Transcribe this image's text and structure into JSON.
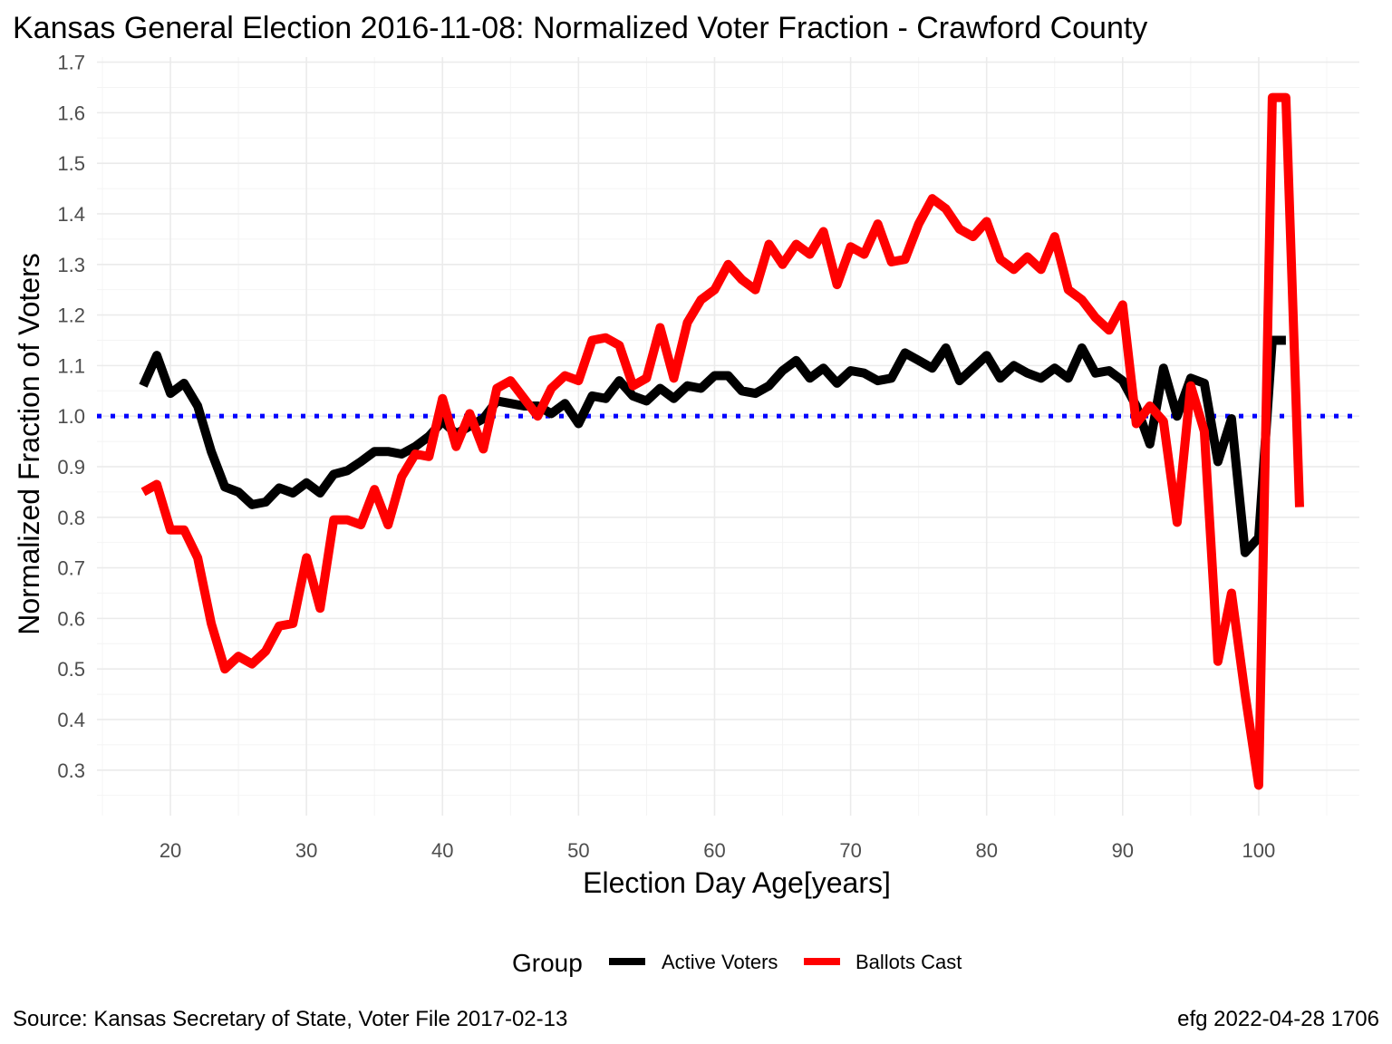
{
  "chart_data": {
    "type": "line",
    "title": "Kansas General Election 2016-11-08:  Normalized Voter Fraction - Crawford County",
    "xlabel": "Election Day Age[years]",
    "ylabel": "Normalized Fraction of Voters",
    "xlim": [
      14.6,
      107.4
    ],
    "ylim": [
      0.21,
      1.71
    ],
    "x_ticks": [
      20,
      30,
      40,
      50,
      60,
      70,
      80,
      90,
      100
    ],
    "y_ticks": [
      0.3,
      0.4,
      0.5,
      0.6,
      0.7,
      0.8,
      0.9,
      1.0,
      1.1,
      1.2,
      1.3,
      1.4,
      1.5,
      1.6,
      1.7
    ],
    "y_tick_labels": [
      "0.3",
      "0.4",
      "0.5",
      "0.6",
      "0.7",
      "0.8",
      "0.9",
      "1.0",
      "1.1",
      "1.2",
      "1.3",
      "1.4",
      "1.5",
      "1.6",
      "1.7"
    ],
    "reference_line": {
      "y": 1.0,
      "color": "#0000ff",
      "style": "dotted"
    },
    "legend": {
      "title": "Group",
      "position": "bottom"
    },
    "series": [
      {
        "name": "Active Voters",
        "color": "#000000",
        "x": [
          18,
          19,
          20,
          21,
          22,
          23,
          24,
          25,
          26,
          27,
          28,
          29,
          30,
          31,
          32,
          33,
          34,
          35,
          36,
          37,
          38,
          39,
          40,
          41,
          42,
          43,
          44,
          45,
          46,
          47,
          48,
          49,
          50,
          51,
          52,
          53,
          54,
          55,
          56,
          57,
          58,
          59,
          60,
          61,
          62,
          63,
          64,
          65,
          66,
          67,
          68,
          69,
          70,
          71,
          72,
          73,
          74,
          75,
          76,
          77,
          78,
          79,
          80,
          81,
          82,
          83,
          84,
          85,
          86,
          87,
          88,
          89,
          90,
          91,
          92,
          93,
          94,
          95,
          96,
          97,
          98,
          99,
          100,
          101,
          102,
          103
        ],
        "values": [
          1.06,
          1.12,
          1.045,
          1.065,
          1.02,
          0.93,
          0.86,
          0.85,
          0.825,
          0.83,
          0.858,
          0.848,
          0.868,
          0.848,
          0.885,
          0.892,
          0.91,
          0.93,
          0.93,
          0.925,
          0.94,
          0.96,
          0.99,
          0.965,
          0.98,
          0.995,
          1.03,
          1.025,
          1.02,
          1.02,
          1.005,
          1.025,
          0.985,
          1.04,
          1.035,
          1.07,
          1.04,
          1.03,
          1.055,
          1.035,
          1.06,
          1.055,
          1.08,
          1.08,
          1.05,
          1.045,
          1.06,
          1.09,
          1.11,
          1.075,
          1.095,
          1.065,
          1.09,
          1.085,
          1.07,
          1.075,
          1.125,
          1.11,
          1.095,
          1.135,
          1.07,
          1.095,
          1.12,
          1.075,
          1.1,
          1.085,
          1.075,
          1.095,
          1.075,
          1.135,
          1.085,
          1.09,
          1.07,
          1.02,
          0.945,
          1.095,
          1.0,
          1.075,
          1.065,
          0.91,
          0.995,
          0.73,
          0.76,
          1.15,
          1.15,
          null
        ]
      },
      {
        "name": "Ballots Cast",
        "color": "#ff0000",
        "x": [
          18,
          19,
          20,
          21,
          22,
          23,
          24,
          25,
          26,
          27,
          28,
          29,
          30,
          31,
          32,
          33,
          34,
          35,
          36,
          37,
          38,
          39,
          40,
          41,
          42,
          43,
          44,
          45,
          46,
          47,
          48,
          49,
          50,
          51,
          52,
          53,
          54,
          55,
          56,
          57,
          58,
          59,
          60,
          61,
          62,
          63,
          64,
          65,
          66,
          67,
          68,
          69,
          70,
          71,
          72,
          73,
          74,
          75,
          76,
          77,
          78,
          79,
          80,
          81,
          82,
          83,
          84,
          85,
          86,
          87,
          88,
          89,
          90,
          91,
          92,
          93,
          94,
          95,
          96,
          97,
          98,
          99,
          100,
          101,
          102,
          103
        ],
        "values": [
          0.85,
          0.865,
          0.775,
          0.775,
          0.72,
          0.59,
          0.5,
          0.525,
          0.51,
          0.535,
          0.585,
          0.59,
          0.72,
          0.62,
          0.795,
          0.795,
          0.785,
          0.855,
          0.785,
          0.88,
          0.925,
          0.92,
          1.035,
          0.94,
          1.005,
          0.935,
          1.055,
          1.07,
          1.035,
          1.0,
          1.055,
          1.08,
          1.07,
          1.15,
          1.155,
          1.14,
          1.06,
          1.075,
          1.175,
          1.075,
          1.185,
          1.23,
          1.25,
          1.3,
          1.27,
          1.25,
          1.34,
          1.3,
          1.34,
          1.32,
          1.365,
          1.26,
          1.335,
          1.32,
          1.38,
          1.305,
          1.31,
          1.38,
          1.43,
          1.41,
          1.37,
          1.355,
          1.385,
          1.31,
          1.29,
          1.315,
          1.29,
          1.355,
          1.25,
          1.23,
          1.195,
          1.17,
          1.22,
          0.985,
          1.02,
          0.99,
          0.79,
          1.06,
          0.97,
          0.515,
          0.65,
          0.45,
          0.27,
          1.63,
          1.63,
          0.82
        ]
      }
    ]
  },
  "caption_left": "Source:  Kansas Secretary of State, Voter File  2017-02-13",
  "caption_right": "efg 2022-04-28 1706"
}
